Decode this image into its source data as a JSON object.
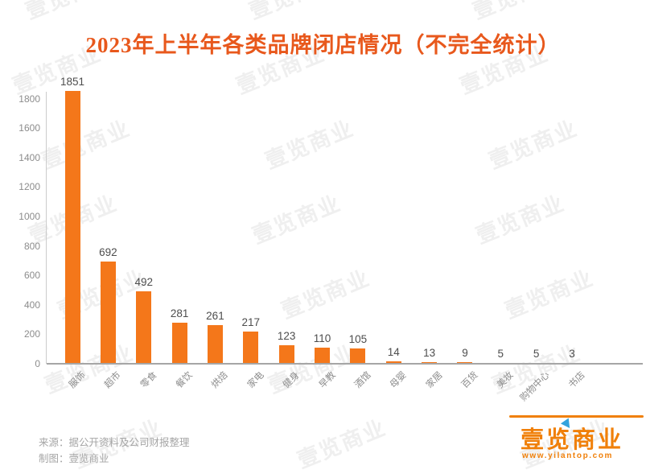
{
  "page": {
    "title": "2023年上半年各类品牌闭店情况（不完全统计）"
  },
  "chart_data": {
    "type": "bar",
    "title": "2023年上半年各类品牌闭店情况（不完全统计）",
    "categories": [
      "服饰",
      "超市",
      "零食",
      "餐饮",
      "烘焙",
      "家电",
      "健身",
      "早教",
      "酒馆",
      "母婴",
      "家居",
      "百货",
      "美妆",
      "购物中心",
      "书店"
    ],
    "values": [
      1851,
      692,
      492,
      281,
      261,
      217,
      123,
      110,
      105,
      14,
      13,
      9,
      5,
      5,
      3
    ],
    "xlabel": "",
    "ylabel": "",
    "ylim": [
      0,
      1900
    ],
    "yticks": [
      0,
      200,
      400,
      600,
      800,
      1000,
      1200,
      1400,
      1600,
      1800
    ],
    "grid": false,
    "legend": "none",
    "value_labels": true,
    "bar_color": "#F4771A",
    "x_tick_rotation": 45
  },
  "watermark": {
    "text": "壹览商业"
  },
  "footer": {
    "source": "来源：据公开资料及公司财报整理",
    "credit": "制图：壹览商业"
  },
  "logo": {
    "name": "壹览商业",
    "website": "www.yilantop.com"
  },
  "colors": {
    "title": "#E8581C",
    "bar": "#F4771A",
    "value_label": "#4D4D4D",
    "axis_text": "#8C8C8C",
    "axis_line": "#CBCBCB",
    "baseline": "#A6A6A6",
    "footer_text": "#A6A6A6",
    "logo_orange": "#F0800A",
    "logo_blue": "#33A3DD",
    "watermark": "#EFEFEF"
  }
}
